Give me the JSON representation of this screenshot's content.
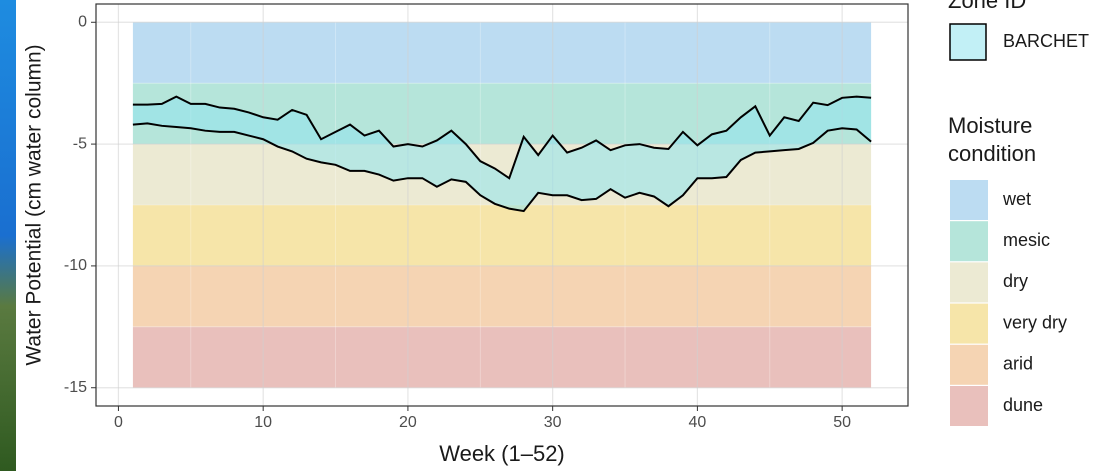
{
  "chart_data": {
    "type": "ribbon",
    "x_label": "Week (1–52)",
    "y_label": "Water Potential (cm water column)",
    "xlim": [
      -1.55,
      54.55
    ],
    "ylim": [
      -15.75,
      0.75
    ],
    "xticks": [
      0,
      10,
      20,
      30,
      40,
      50
    ],
    "yticks": [
      0,
      -5,
      -10,
      -15
    ],
    "xminor": [
      5,
      15,
      25,
      35,
      45
    ],
    "yminor": [
      -2.5,
      -7.5,
      -12.5
    ],
    "grid": true,
    "x": [
      1,
      2,
      3,
      4,
      5,
      6,
      7,
      8,
      9,
      10,
      11,
      12,
      13,
      14,
      15,
      16,
      17,
      18,
      19,
      20,
      21,
      22,
      23,
      24,
      25,
      26,
      27,
      28,
      29,
      30,
      31,
      32,
      33,
      34,
      35,
      36,
      37,
      38,
      39,
      40,
      41,
      42,
      43,
      44,
      45,
      46,
      47,
      48,
      49,
      50,
      51,
      52
    ],
    "series": [
      {
        "name": "BARCHET",
        "color": "#8fe3ee",
        "alpha": 0.55,
        "high": [
          -3.38,
          -3.38,
          -3.35,
          -3.05,
          -3.35,
          -3.35,
          -3.5,
          -3.55,
          -3.7,
          -3.9,
          -4.0,
          -3.6,
          -3.8,
          -4.8,
          -4.5,
          -4.2,
          -4.65,
          -4.45,
          -5.1,
          -5.0,
          -5.1,
          -4.85,
          -4.45,
          -5.0,
          -5.7,
          -6.0,
          -6.4,
          -4.7,
          -5.45,
          -4.65,
          -5.35,
          -5.15,
          -4.85,
          -5.25,
          -5.05,
          -5.0,
          -5.15,
          -5.2,
          -4.5,
          -5.05,
          -4.6,
          -4.45,
          -3.9,
          -3.45,
          -4.65,
          -3.9,
          -4.05,
          -3.3,
          -3.4,
          -3.1,
          -3.05,
          -3.1
        ],
        "low": [
          -4.2,
          -4.15,
          -4.25,
          -4.3,
          -4.35,
          -4.45,
          -4.5,
          -4.5,
          -4.65,
          -4.8,
          -5.1,
          -5.3,
          -5.6,
          -5.75,
          -5.85,
          -6.1,
          -6.1,
          -6.25,
          -6.5,
          -6.4,
          -6.4,
          -6.75,
          -6.45,
          -6.55,
          -7.1,
          -7.45,
          -7.65,
          -7.75,
          -7.0,
          -7.1,
          -7.1,
          -7.3,
          -7.25,
          -6.85,
          -7.2,
          -7.0,
          -7.15,
          -7.55,
          -7.1,
          -6.4,
          -6.4,
          -6.35,
          -5.65,
          -5.35,
          -5.3,
          -5.25,
          -5.2,
          -4.95,
          -4.45,
          -4.35,
          -4.4,
          -4.9
        ]
      }
    ],
    "series_legend_title": "Zone ID",
    "bands_legend_title": "Moisture condition",
    "bands": [
      {
        "name": "wet",
        "color": "#bcdcf2",
        "from": 0,
        "to": -2.5
      },
      {
        "name": "mesic",
        "color": "#b5e5da",
        "from": -2.5,
        "to": -5
      },
      {
        "name": "dry",
        "color": "#ecead3",
        "from": -5,
        "to": -7.5
      },
      {
        "name": "very dry",
        "color": "#f6e5a9",
        "from": -7.5,
        "to": -10
      },
      {
        "name": "arid",
        "color": "#f5d4b3",
        "from": -10,
        "to": -12.5
      },
      {
        "name": "dune",
        "color": "#e9c0bc",
        "from": -12.5,
        "to": -15
      }
    ]
  }
}
